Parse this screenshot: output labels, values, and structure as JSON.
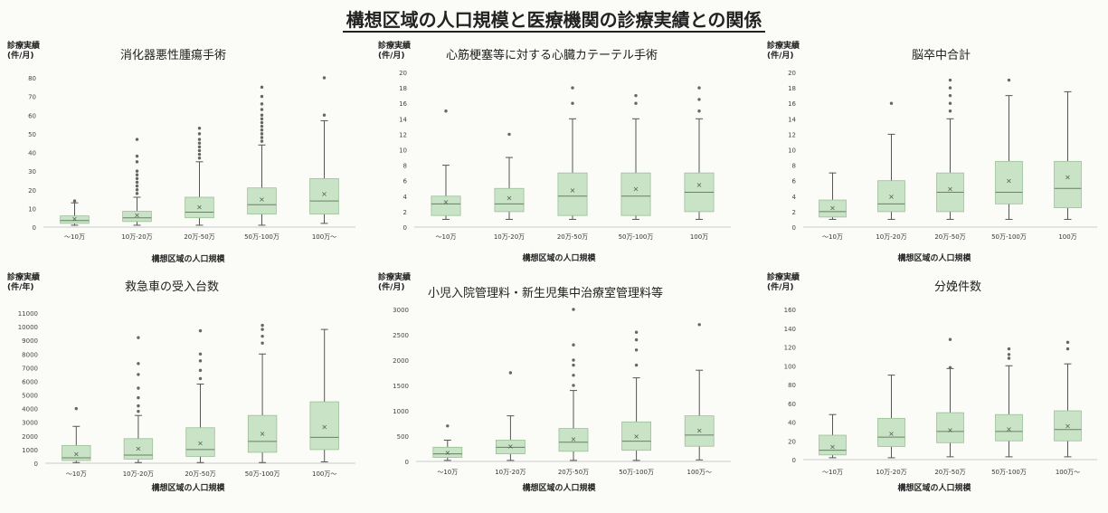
{
  "page_title": "構想区域の人口規模と医療機関の診療実績との関係",
  "chart_data": [
    {
      "type": "box",
      "title": "消化器悪性腫瘍手術",
      "ylabel": "診療実績\n(件/月)",
      "xlabel": "構想区域の人口規模",
      "categories": [
        "～10万",
        "10万-20万",
        "20万-50万",
        "50万-100万",
        "100万～"
      ],
      "ylim": [
        0,
        80
      ],
      "yticks": [
        0,
        10,
        20,
        30,
        40,
        50,
        60,
        70,
        80
      ],
      "boxes": [
        {
          "min": 1,
          "q1": 2,
          "median": 3.5,
          "q3": 6,
          "max": 13,
          "mean": 4.5,
          "outliers": [
            14
          ]
        },
        {
          "min": 1,
          "q1": 3,
          "median": 5,
          "q3": 8.5,
          "max": 16,
          "mean": 6.5,
          "outliers": [
            18,
            20,
            22,
            24,
            26,
            28,
            30,
            35,
            38,
            47
          ]
        },
        {
          "min": 1,
          "q1": 5,
          "median": 8,
          "q3": 16,
          "max": 35,
          "mean": 11,
          "outliers": [
            37,
            39,
            41,
            43,
            45,
            47,
            50,
            53
          ]
        },
        {
          "min": 1,
          "q1": 7,
          "median": 12,
          "q3": 21,
          "max": 44,
          "mean": 15,
          "outliers": [
            46,
            48,
            50,
            52,
            54,
            56,
            58,
            60,
            63,
            66,
            70,
            75
          ]
        },
        {
          "min": 2,
          "q1": 7,
          "median": 14,
          "q3": 26,
          "max": 57,
          "mean": 18,
          "outliers": [
            60,
            80
          ]
        }
      ]
    },
    {
      "type": "box",
      "title": "心筋梗塞等に対する心臓カテーテル手術",
      "ylabel": "診療実績\n(件/月)",
      "xlabel": "構想区域の人口規模",
      "categories": [
        "～10万",
        "10万-20万",
        "20万-50万",
        "50万-100万",
        "100万"
      ],
      "ylim": [
        0,
        20
      ],
      "yticks": [
        0,
        2,
        4,
        6,
        8,
        10,
        12,
        14,
        16,
        18,
        20
      ],
      "boxes": [
        {
          "min": 1,
          "q1": 1.5,
          "median": 3,
          "q3": 4,
          "max": 8,
          "mean": 3.3,
          "outliers": [
            15
          ]
        },
        {
          "min": 1,
          "q1": 2,
          "median": 3,
          "q3": 5,
          "max": 9,
          "mean": 3.8,
          "outliers": [
            12
          ]
        },
        {
          "min": 1,
          "q1": 1.5,
          "median": 4,
          "q3": 7,
          "max": 14,
          "mean": 4.8,
          "outliers": [
            16,
            18
          ]
        },
        {
          "min": 1,
          "q1": 1.5,
          "median": 4,
          "q3": 7,
          "max": 14,
          "mean": 5,
          "outliers": [
            16,
            17
          ]
        },
        {
          "min": 1,
          "q1": 2,
          "median": 4.5,
          "q3": 7,
          "max": 14,
          "mean": 5.5,
          "outliers": [
            15,
            16.5,
            18
          ]
        }
      ]
    },
    {
      "type": "box",
      "title": "脳卒中合計",
      "ylabel": "診療実績\n(件/月)",
      "xlabel": "構想区域の人口規模",
      "categories": [
        "～10万",
        "10万-20万",
        "20万-50万",
        "50万-100万",
        "100万"
      ],
      "ylim": [
        0,
        20
      ],
      "yticks": [
        0,
        2,
        4,
        6,
        8,
        10,
        12,
        14,
        16,
        18,
        20
      ],
      "boxes": [
        {
          "min": 1,
          "q1": 1.3,
          "median": 2,
          "q3": 3.5,
          "max": 7,
          "mean": 2.5,
          "outliers": []
        },
        {
          "min": 1,
          "q1": 2,
          "median": 3,
          "q3": 6,
          "max": 12,
          "mean": 4,
          "outliers": [
            16
          ]
        },
        {
          "min": 1,
          "q1": 2,
          "median": 4.5,
          "q3": 7,
          "max": 14,
          "mean": 5,
          "outliers": [
            15,
            16,
            17,
            18,
            19
          ]
        },
        {
          "min": 1,
          "q1": 3,
          "median": 4.5,
          "q3": 8.5,
          "max": 17,
          "mean": 6,
          "outliers": [
            19
          ]
        },
        {
          "min": 1,
          "q1": 2.5,
          "median": 5,
          "q3": 8.5,
          "max": 17.5,
          "mean": 6.5,
          "outliers": []
        }
      ]
    },
    {
      "type": "box",
      "title": "救急車の受入台数",
      "ylabel": "診療実績\n(件/年)",
      "xlabel": "構想区域の人口規模",
      "categories": [
        "～10万",
        "10万-20万",
        "20万-50万",
        "50万-100万",
        "100万～"
      ],
      "ylim": [
        0,
        11000
      ],
      "yticks": [
        0,
        1000,
        2000,
        3000,
        4000,
        5000,
        6000,
        7000,
        8000,
        9000,
        10000,
        11000
      ],
      "boxes": [
        {
          "min": 50,
          "q1": 200,
          "median": 400,
          "q3": 1300,
          "max": 2700,
          "mean": 700,
          "outliers": [
            4000
          ]
        },
        {
          "min": 50,
          "q1": 300,
          "median": 600,
          "q3": 1800,
          "max": 3500,
          "mean": 1100,
          "outliers": [
            3800,
            4200,
            4800,
            5500,
            6500,
            7300,
            9200
          ]
        },
        {
          "min": 50,
          "q1": 500,
          "median": 1000,
          "q3": 2600,
          "max": 5800,
          "mean": 1500,
          "outliers": [
            6200,
            6800,
            7500,
            8000,
            9700
          ]
        },
        {
          "min": 50,
          "q1": 800,
          "median": 1600,
          "q3": 3500,
          "max": 8000,
          "mean": 2200,
          "outliers": [
            8800,
            9300,
            9800,
            10100
          ]
        },
        {
          "min": 100,
          "q1": 1000,
          "median": 1900,
          "q3": 4500,
          "max": 9800,
          "mean": 2700,
          "outliers": []
        }
      ]
    },
    {
      "type": "box",
      "title": "小児入院管理料・新生児集中治療室管理料等",
      "ylabel": "診療実績\n(件/月)",
      "xlabel": "構想区域の人口規模",
      "categories": [
        "～10万",
        "10万-20万",
        "20万-50万",
        "50万-100万",
        "100万～"
      ],
      "ylim": [
        0,
        3000
      ],
      "yticks": [
        0,
        500,
        1000,
        1500,
        2000,
        2500,
        3000
      ],
      "boxes": [
        {
          "min": 20,
          "q1": 80,
          "median": 150,
          "q3": 280,
          "max": 420,
          "mean": 180,
          "outliers": [
            700
          ]
        },
        {
          "min": 20,
          "q1": 150,
          "median": 280,
          "q3": 420,
          "max": 900,
          "mean": 300,
          "outliers": [
            1750
          ]
        },
        {
          "min": 20,
          "q1": 200,
          "median": 380,
          "q3": 650,
          "max": 1400,
          "mean": 450,
          "outliers": [
            1500,
            1700,
            1900,
            2000,
            2300,
            3000
          ]
        },
        {
          "min": 20,
          "q1": 220,
          "median": 400,
          "q3": 780,
          "max": 1650,
          "mean": 500,
          "outliers": [
            1900,
            2200,
            2400,
            2550
          ]
        },
        {
          "min": 30,
          "q1": 300,
          "median": 520,
          "q3": 900,
          "max": 1800,
          "mean": 620,
          "outliers": [
            2700
          ]
        }
      ]
    },
    {
      "type": "box",
      "title": "分娩件数",
      "ylabel": "診療実績\n(件/月)",
      "xlabel": "構想区域の人口規模",
      "categories": [
        "～10万",
        "10万-20万",
        "20万-50万",
        "50万-100万",
        "100万～"
      ],
      "ylim": [
        0,
        160
      ],
      "yticks": [
        0,
        20,
        40,
        60,
        80,
        100,
        120,
        140,
        160
      ],
      "boxes": [
        {
          "min": 2,
          "q1": 5,
          "median": 10,
          "q3": 26,
          "max": 48,
          "mean": 14,
          "outliers": []
        },
        {
          "min": 2,
          "q1": 14,
          "median": 24,
          "q3": 44,
          "max": 90,
          "mean": 28,
          "outliers": []
        },
        {
          "min": 3,
          "q1": 18,
          "median": 30,
          "q3": 50,
          "max": 97,
          "mean": 32,
          "outliers": [
            98,
            128
          ]
        },
        {
          "min": 3,
          "q1": 20,
          "median": 30,
          "q3": 48,
          "max": 100,
          "mean": 33,
          "outliers": [
            108,
            112,
            118
          ]
        },
        {
          "min": 3,
          "q1": 20,
          "median": 32,
          "q3": 52,
          "max": 102,
          "mean": 36,
          "outliers": [
            118,
            125
          ]
        }
      ]
    }
  ]
}
